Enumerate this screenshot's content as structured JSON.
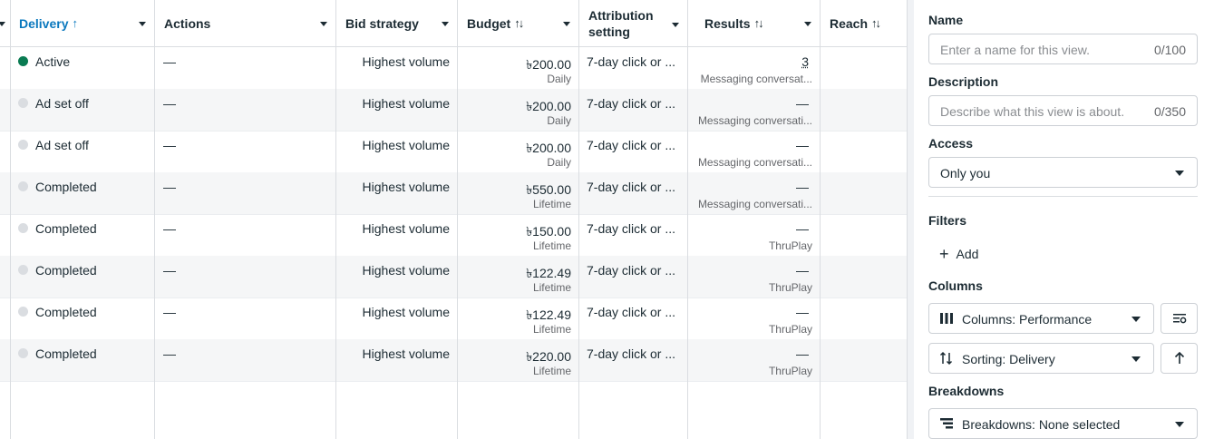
{
  "table": {
    "headers": {
      "delivery": "Delivery",
      "delivery_sort": "↑",
      "actions": "Actions",
      "bid_strategy": "Bid strategy",
      "budget": "Budget",
      "budget_sort": "↑↓",
      "attribution_line1": "Attribution",
      "attribution_line2": "setting",
      "results": "Results",
      "results_sort": "↑↓",
      "reach": "Reach",
      "reach_sort": "↑↓"
    },
    "rows": [
      {
        "delivery": "Active",
        "active": true,
        "actions": "—",
        "bid": "Highest volume",
        "budget": "৳200.00",
        "budget_type": "Daily",
        "attribution": "7-day click or ...",
        "result": "3",
        "result_type": "Messaging conversat..."
      },
      {
        "delivery": "Ad set off",
        "active": false,
        "actions": "—",
        "bid": "Highest volume",
        "budget": "৳200.00",
        "budget_type": "Daily",
        "attribution": "7-day click or ...",
        "result": "—",
        "result_type": "Messaging conversati..."
      },
      {
        "delivery": "Ad set off",
        "active": false,
        "actions": "—",
        "bid": "Highest volume",
        "budget": "৳200.00",
        "budget_type": "Daily",
        "attribution": "7-day click or ...",
        "result": "—",
        "result_type": "Messaging conversati..."
      },
      {
        "delivery": "Completed",
        "active": false,
        "actions": "—",
        "bid": "Highest volume",
        "budget": "৳550.00",
        "budget_type": "Lifetime",
        "attribution": "7-day click or ...",
        "result": "—",
        "result_type": "Messaging conversati..."
      },
      {
        "delivery": "Completed",
        "active": false,
        "actions": "—",
        "bid": "Highest volume",
        "budget": "৳150.00",
        "budget_type": "Lifetime",
        "attribution": "7-day click or ...",
        "result": "—",
        "result_type": "ThruPlay"
      },
      {
        "delivery": "Completed",
        "active": false,
        "actions": "—",
        "bid": "Highest volume",
        "budget": "৳122.49",
        "budget_type": "Lifetime",
        "attribution": "7-day click or ...",
        "result": "—",
        "result_type": "ThruPlay"
      },
      {
        "delivery": "Completed",
        "active": false,
        "actions": "—",
        "bid": "Highest volume",
        "budget": "৳122.49",
        "budget_type": "Lifetime",
        "attribution": "7-day click or ...",
        "result": "—",
        "result_type": "ThruPlay"
      },
      {
        "delivery": "Completed",
        "active": false,
        "actions": "—",
        "bid": "Highest volume",
        "budget": "৳220.00",
        "budget_type": "Lifetime",
        "attribution": "7-day click or ...",
        "result": "—",
        "result_type": "ThruPlay"
      }
    ]
  },
  "panel": {
    "name_label": "Name",
    "name_placeholder": "Enter a name for this view.",
    "name_count": "0/100",
    "description_label": "Description",
    "description_placeholder": "Describe what this view is about.",
    "description_count": "0/350",
    "access_label": "Access",
    "access_value": "Only you",
    "filters_label": "Filters",
    "filters_add": "Add",
    "columns_label": "Columns",
    "columns_value": "Columns: Performance",
    "sorting_value": "Sorting: Delivery",
    "breakdowns_label": "Breakdowns",
    "breakdowns_value": "Breakdowns: None selected"
  },
  "colors": {
    "active_dot": "#0a7b52",
    "inactive_dot": "#dadde1",
    "sorted_header": "#0a78be"
  }
}
